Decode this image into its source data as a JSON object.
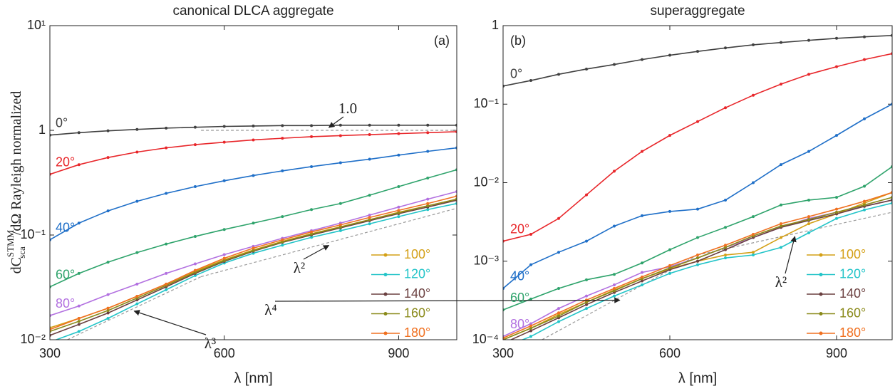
{
  "chart_data": [
    {
      "type": "line",
      "title": "canonical DLCA aggregate",
      "panel_label": "(a)",
      "log_y": true,
      "legend": "lower right",
      "xlabel": "λ [nm]",
      "ylabel": {
        "base": "dC",
        "sup": "STMM",
        "sub": "sca",
        "rest": "/dΩ  Rayleigh normalized"
      },
      "xlim": [
        300,
        1000
      ],
      "xticks": [
        300,
        600,
        900
      ],
      "ylim": [
        0.01,
        10
      ],
      "yticks": [
        {
          "value": 0.01,
          "label": "10⁻²"
        },
        {
          "value": 0.1,
          "label": "10⁻¹"
        },
        1,
        {
          "value": 10,
          "label": "10¹"
        }
      ],
      "x": [
        300,
        350,
        400,
        450,
        500,
        550,
        600,
        650,
        700,
        750,
        800,
        850,
        900,
        950,
        1000
      ],
      "series": [
        {
          "name": "0°",
          "color": "#404040",
          "values": [
            0.9,
            0.95,
            0.99,
            1.02,
            1.05,
            1.07,
            1.09,
            1.1,
            1.11,
            1.11,
            1.12,
            1.12,
            1.12,
            1.12,
            1.12
          ]
        },
        {
          "name": "20°",
          "color": "#e8262a",
          "values": [
            0.38,
            0.47,
            0.55,
            0.62,
            0.68,
            0.73,
            0.77,
            0.81,
            0.84,
            0.87,
            0.89,
            0.91,
            0.93,
            0.95,
            0.97
          ]
        },
        {
          "name": "40°",
          "color": "#1f6fc8",
          "values": [
            0.09,
            0.13,
            0.17,
            0.21,
            0.25,
            0.29,
            0.33,
            0.37,
            0.41,
            0.45,
            0.49,
            0.53,
            0.58,
            0.63,
            0.68
          ]
        },
        {
          "name": "60°",
          "color": "#2ea36b",
          "values": [
            0.032,
            0.043,
            0.055,
            0.068,
            0.082,
            0.097,
            0.113,
            0.13,
            0.15,
            0.175,
            0.2,
            0.24,
            0.29,
            0.35,
            0.42
          ]
        },
        {
          "name": "80°",
          "color": "#b270e0",
          "values": [
            0.017,
            0.021,
            0.027,
            0.034,
            0.043,
            0.053,
            0.065,
            0.078,
            0.093,
            0.11,
            0.13,
            0.155,
            0.185,
            0.22,
            0.26
          ]
        },
        {
          "name": "100°",
          "color": "#d4a017",
          "values": [
            0.013,
            0.016,
            0.02,
            0.026,
            0.034,
            0.045,
            0.058,
            0.072,
            0.087,
            0.103,
            0.12,
            0.14,
            0.165,
            0.19,
            0.22
          ]
        },
        {
          "name": "120°",
          "color": "#22c4c8",
          "values": [
            0.0095,
            0.012,
            0.016,
            0.022,
            0.03,
            0.041,
            0.054,
            0.067,
            0.08,
            0.095,
            0.11,
            0.128,
            0.15,
            0.175,
            0.2
          ]
        },
        {
          "name": "140°",
          "color": "#6b4040",
          "values": [
            0.011,
            0.014,
            0.018,
            0.024,
            0.032,
            0.043,
            0.056,
            0.07,
            0.085,
            0.1,
            0.117,
            0.137,
            0.16,
            0.185,
            0.215
          ]
        },
        {
          "name": "160°",
          "color": "#8a8a1a",
          "values": [
            0.012,
            0.015,
            0.019,
            0.025,
            0.033,
            0.044,
            0.057,
            0.071,
            0.086,
            0.102,
            0.119,
            0.14,
            0.163,
            0.19,
            0.22
          ]
        },
        {
          "name": "180°",
          "color": "#f07020",
          "values": [
            0.0125,
            0.016,
            0.02,
            0.026,
            0.034,
            0.046,
            0.06,
            0.075,
            0.09,
            0.107,
            0.125,
            0.147,
            0.172,
            0.2,
            0.235
          ]
        }
      ],
      "reference_lines": [
        {
          "label": "λ³",
          "x": [
            330,
            560
          ],
          "values": [
            0.01,
            0.04
          ]
        },
        {
          "label": "λ²",
          "x": [
            560,
            1000
          ],
          "values": [
            0.04,
            0.18
          ]
        },
        {
          "label": "1.0",
          "x": [
            560,
            1000
          ],
          "values": [
            1,
            1
          ]
        }
      ]
    },
    {
      "type": "line",
      "title": "superaggregate",
      "panel_label": "(b)",
      "log_y": true,
      "legend": "lower right",
      "xlabel": "λ [nm]",
      "xlim": [
        300,
        1000
      ],
      "xticks": [
        300,
        600,
        900
      ],
      "ylim": [
        0.0001,
        1
      ],
      "yticks": [
        {
          "value": 0.0001,
          "label": "10⁻⁴"
        },
        {
          "value": 0.001,
          "label": "10⁻³"
        },
        {
          "value": 0.01,
          "label": "10⁻²"
        },
        {
          "value": 0.1,
          "label": "10⁻¹"
        },
        1
      ],
      "x": [
        300,
        350,
        400,
        450,
        500,
        550,
        600,
        650,
        700,
        750,
        800,
        850,
        900,
        950,
        1000
      ],
      "series": [
        {
          "name": "0°",
          "color": "#404040",
          "values": [
            0.17,
            0.2,
            0.24,
            0.28,
            0.32,
            0.37,
            0.42,
            0.47,
            0.52,
            0.57,
            0.61,
            0.65,
            0.69,
            0.72,
            0.75
          ]
        },
        {
          "name": "20°",
          "color": "#e8262a",
          "values": [
            0.0018,
            0.0022,
            0.0035,
            0.007,
            0.014,
            0.025,
            0.04,
            0.06,
            0.09,
            0.13,
            0.18,
            0.24,
            0.3,
            0.37,
            0.44
          ]
        },
        {
          "name": "40°",
          "color": "#1f6fc8",
          "values": [
            0.00045,
            0.0009,
            0.0013,
            0.0018,
            0.0028,
            0.0038,
            0.0043,
            0.0046,
            0.006,
            0.01,
            0.017,
            0.025,
            0.04,
            0.065,
            0.1
          ]
        },
        {
          "name": "60°",
          "color": "#2ea36b",
          "values": [
            0.00024,
            0.00033,
            0.00045,
            0.00058,
            0.00068,
            0.00095,
            0.0014,
            0.002,
            0.0027,
            0.0037,
            0.0052,
            0.006,
            0.0065,
            0.009,
            0.016
          ]
        },
        {
          "name": "80°",
          "color": "#b270e0",
          "values": [
            0.00011,
            0.00016,
            0.00025,
            0.00036,
            0.0005,
            0.00072,
            0.00085,
            0.0011,
            0.0015,
            0.002,
            0.0027,
            0.0035,
            0.0042,
            0.005,
            0.006
          ]
        },
        {
          "name": "100°",
          "color": "#d4a017",
          "values": [
            0.0001,
            0.00014,
            0.00021,
            0.0003,
            0.00043,
            0.0006,
            0.0008,
            0.001,
            0.0012,
            0.0013,
            0.002,
            0.003,
            0.004,
            0.0055,
            0.0075
          ]
        },
        {
          "name": "120°",
          "color": "#22c4c8",
          "values": [
            8e-05,
            0.00011,
            0.00017,
            0.00025,
            0.00036,
            0.0005,
            0.0007,
            0.0009,
            0.0011,
            0.0012,
            0.0015,
            0.0023,
            0.0035,
            0.0045,
            0.0055
          ]
        },
        {
          "name": "140°",
          "color": "#6b4040",
          "values": [
            9e-05,
            0.00013,
            0.00019,
            0.00028,
            0.0004,
            0.00056,
            0.00078,
            0.001,
            0.0014,
            0.002,
            0.0027,
            0.0033,
            0.004,
            0.005,
            0.006
          ]
        },
        {
          "name": "160°",
          "color": "#8a8a1a",
          "values": [
            0.0001,
            0.00014,
            0.0002,
            0.0003,
            0.00042,
            0.0006,
            0.00082,
            0.0011,
            0.0015,
            0.0021,
            0.0028,
            0.0034,
            0.0042,
            0.0052,
            0.0065
          ]
        },
        {
          "name": "180°",
          "color": "#f07020",
          "values": [
            0.000105,
            0.00015,
            0.00022,
            0.00032,
            0.00045,
            0.00063,
            0.00088,
            0.0012,
            0.0016,
            0.0022,
            0.003,
            0.0037,
            0.0046,
            0.0058,
            0.0075
          ]
        }
      ],
      "reference_lines": [
        {
          "label": "λ⁴",
          "x": [
            370,
            650
          ],
          "values": [
            0.0001,
            0.0012
          ]
        },
        {
          "label": "λ²",
          "x": [
            650,
            1000
          ],
          "values": [
            0.0012,
            0.0042
          ]
        }
      ]
    }
  ]
}
